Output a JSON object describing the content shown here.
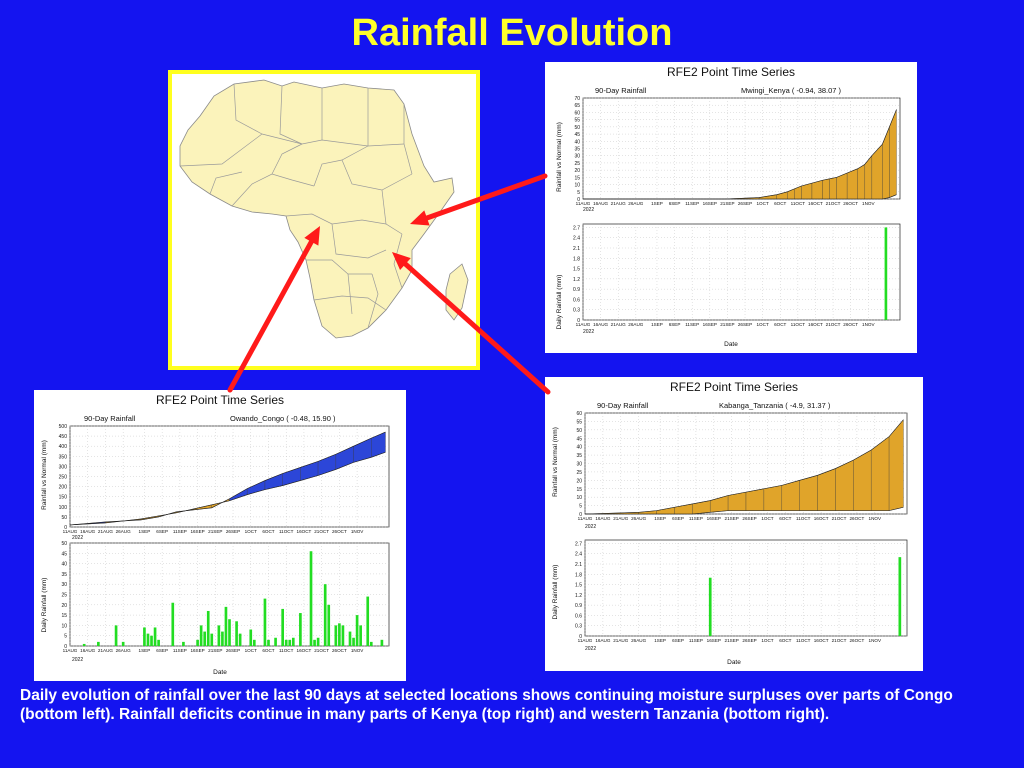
{
  "slide": {
    "title": "Rainfall Evolution",
    "caption": "Daily evolution of rainfall over the last 90 days at selected locations shows continuing moisture surpluses over parts of Congo (bottom left). Rainfall deficits continue in many parts of Kenya (top right) and western Tanzania (bottom right)."
  },
  "colors": {
    "background": "#1414f0",
    "title": "#ffff2a",
    "map_border": "#ffff1e",
    "map_land": "#fbf3bb",
    "arrow": "#ff1a1a",
    "deficit_fill": "#e0a42a",
    "surplus_fill": "#2c46d8",
    "daily_bar": "#22dd22"
  },
  "chart_data": [
    {
      "id": "kenya",
      "type": "area",
      "title": "RFE2 Point Time Series",
      "subtitle_left": "90-Day Rainfall",
      "subtitle_right": "Mwingi_Kenya  ( -0.94, 38.07 )",
      "x_ticks": [
        "11AUG",
        "16AUG",
        "21AUG",
        "26AUG",
        "1SEP",
        "6SEP",
        "11SEP",
        "16SEP",
        "21SEP",
        "26SEP",
        "1OCT",
        "6OCT",
        "11OCT",
        "16OCT",
        "21OCT",
        "26OCT",
        "1NOV"
      ],
      "x_year": "2022",
      "xlabel": "Date",
      "top": {
        "ylabel": "Rainfall vs Normal (mm)",
        "ylim": [
          0,
          70
        ],
        "y_ticks": [
          "0",
          "5",
          "10",
          "15",
          "20",
          "25",
          "30",
          "35",
          "40",
          "45",
          "50",
          "55",
          "60",
          "65",
          "70"
        ],
        "x": [
          0,
          40,
          50,
          55,
          58,
          60,
          62,
          65,
          68,
          70,
          72,
          75,
          78,
          80,
          82,
          85,
          87,
          89
        ],
        "normal": [
          0,
          0,
          1,
          3,
          5,
          7,
          9,
          11,
          13,
          14,
          15,
          18,
          21,
          24,
          30,
          38,
          50,
          62
        ],
        "actual": [
          0,
          0,
          0,
          0,
          0,
          0,
          0,
          0,
          0,
          0,
          0,
          0,
          0,
          0,
          0,
          0,
          1,
          3
        ]
      },
      "bottom": {
        "ylabel": "Daily Rainfall (mm)",
        "ylim": [
          0,
          2.8
        ],
        "y_ticks": [
          "0",
          "0.3",
          "0.6",
          "0.9",
          "1.2",
          "1.5",
          "1.8",
          "2.1",
          "2.4",
          "2.7"
        ],
        "bars": [
          {
            "x": 86,
            "v": 2.7
          }
        ]
      }
    },
    {
      "id": "congo",
      "type": "area",
      "title": "RFE2 Point Time Series",
      "subtitle_left": "90-Day Rainfall",
      "subtitle_right": "Owando_Congo  ( -0.48, 15.90 )",
      "x_ticks": [
        "11AUG",
        "16AUG",
        "21AUG",
        "26AUG",
        "1SEP",
        "6SEP",
        "11SEP",
        "16SEP",
        "21SEP",
        "26SEP",
        "1OCT",
        "6OCT",
        "11OCT",
        "16OCT",
        "21OCT",
        "26OCT",
        "1NOV"
      ],
      "x_year": "2022",
      "xlabel": "Date",
      "top": {
        "ylabel": "Rainfall vs Normal (mm)",
        "ylim": [
          0,
          500
        ],
        "y_ticks": [
          "0",
          "50",
          "100",
          "150",
          "200",
          "250",
          "300",
          "350",
          "400",
          "450",
          "500"
        ],
        "x": [
          0,
          10,
          20,
          25,
          30,
          35,
          40,
          45,
          50,
          55,
          60,
          65,
          70,
          75,
          80,
          85,
          89
        ],
        "normal": [
          10,
          20,
          40,
          55,
          70,
          90,
          110,
          130,
          160,
          185,
          205,
          230,
          255,
          285,
          320,
          345,
          370
        ],
        "actual": [
          10,
          25,
          35,
          50,
          75,
          85,
          95,
          140,
          190,
          230,
          265,
          295,
          325,
          360,
          400,
          440,
          470
        ]
      },
      "bottom": {
        "ylabel": "Daily Rainfall (mm)",
        "ylim": [
          0,
          50
        ],
        "y_ticks": [
          "0",
          "5",
          "10",
          "15",
          "20",
          "25",
          "30",
          "35",
          "40",
          "45",
          "50"
        ],
        "bars": [
          {
            "x": 4,
            "v": 1
          },
          {
            "x": 8,
            "v": 2
          },
          {
            "x": 13,
            "v": 10
          },
          {
            "x": 15,
            "v": 2
          },
          {
            "x": 21,
            "v": 9
          },
          {
            "x": 22,
            "v": 6
          },
          {
            "x": 23,
            "v": 5
          },
          {
            "x": 24,
            "v": 9
          },
          {
            "x": 25,
            "v": 3
          },
          {
            "x": 29,
            "v": 21
          },
          {
            "x": 32,
            "v": 2
          },
          {
            "x": 36,
            "v": 3
          },
          {
            "x": 37,
            "v": 10
          },
          {
            "x": 38,
            "v": 7
          },
          {
            "x": 39,
            "v": 17
          },
          {
            "x": 40,
            "v": 6
          },
          {
            "x": 42,
            "v": 10
          },
          {
            "x": 43,
            "v": 7
          },
          {
            "x": 44,
            "v": 19
          },
          {
            "x": 45,
            "v": 13
          },
          {
            "x": 47,
            "v": 12
          },
          {
            "x": 48,
            "v": 6
          },
          {
            "x": 51,
            "v": 8
          },
          {
            "x": 52,
            "v": 3
          },
          {
            "x": 55,
            "v": 23
          },
          {
            "x": 56,
            "v": 3
          },
          {
            "x": 58,
            "v": 4
          },
          {
            "x": 60,
            "v": 18
          },
          {
            "x": 61,
            "v": 3
          },
          {
            "x": 62,
            "v": 3
          },
          {
            "x": 63,
            "v": 4
          },
          {
            "x": 65,
            "v": 16
          },
          {
            "x": 68,
            "v": 46
          },
          {
            "x": 69,
            "v": 3
          },
          {
            "x": 70,
            "v": 4
          },
          {
            "x": 72,
            "v": 30
          },
          {
            "x": 73,
            "v": 20
          },
          {
            "x": 75,
            "v": 10
          },
          {
            "x": 76,
            "v": 11
          },
          {
            "x": 77,
            "v": 10
          },
          {
            "x": 79,
            "v": 7
          },
          {
            "x": 80,
            "v": 4
          },
          {
            "x": 81,
            "v": 15
          },
          {
            "x": 82,
            "v": 10
          },
          {
            "x": 84,
            "v": 24
          },
          {
            "x": 85,
            "v": 2
          },
          {
            "x": 88,
            "v": 3
          }
        ]
      }
    },
    {
      "id": "tanzania",
      "type": "area",
      "title": "RFE2 Point Time Series",
      "subtitle_left": "90-Day Rainfall",
      "subtitle_right": "Kabanga_Tanzania  ( -4.9, 31.37 )",
      "x_ticks": [
        "11AUG",
        "16AUG",
        "21AUG",
        "26AUG",
        "1SEP",
        "6SEP",
        "11SEP",
        "16SEP",
        "21SEP",
        "26SEP",
        "1OCT",
        "6OCT",
        "11OCT",
        "16OCT",
        "21OCT",
        "26OCT",
        "1NOV"
      ],
      "x_year": "2022",
      "xlabel": "Date",
      "top": {
        "ylabel": "Rainfall vs Normal (mm)",
        "ylim": [
          0,
          60
        ],
        "y_ticks": [
          "0",
          "5",
          "10",
          "15",
          "20",
          "25",
          "30",
          "35",
          "40",
          "45",
          "50",
          "55",
          "60"
        ],
        "x": [
          0,
          15,
          20,
          25,
          30,
          35,
          40,
          45,
          50,
          55,
          60,
          65,
          70,
          75,
          80,
          85,
          89
        ],
        "normal": [
          0,
          1,
          2,
          4,
          6,
          8,
          11,
          13,
          15,
          17,
          20,
          23,
          27,
          32,
          38,
          46,
          56
        ],
        "actual": [
          0,
          0,
          0,
          0,
          0,
          1,
          2,
          2,
          2,
          2,
          2,
          2,
          2,
          2,
          2,
          2,
          4
        ]
      },
      "bottom": {
        "ylabel": "Daily Rainfall (mm)",
        "ylim": [
          0,
          2.8
        ],
        "y_ticks": [
          "0",
          "0.3",
          "0.6",
          "0.9",
          "1.2",
          "1.5",
          "1.8",
          "2.1",
          "2.4",
          "2.7"
        ],
        "bars": [
          {
            "x": 35,
            "v": 1.7
          },
          {
            "x": 88,
            "v": 2.3
          }
        ]
      }
    }
  ]
}
